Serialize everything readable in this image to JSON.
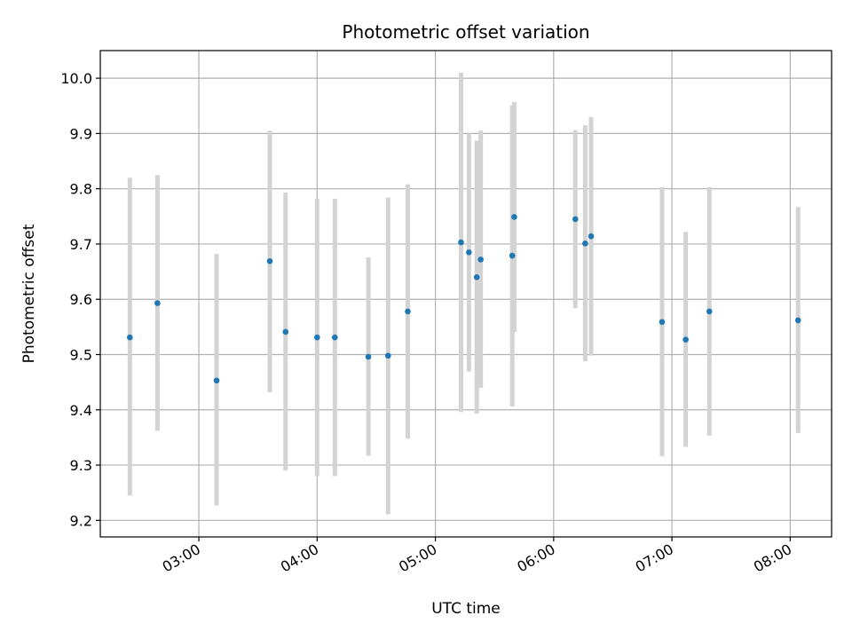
{
  "chart_data": {
    "type": "scatter",
    "title": "Photometric offset variation",
    "xlabel": "UTC time",
    "ylabel": "Photometric offset",
    "x_axis_kind": "time",
    "xlim": [
      "02:10",
      "08:21"
    ],
    "ylim": [
      9.17,
      10.05
    ],
    "x_ticks": [
      "03:00",
      "04:00",
      "05:00",
      "06:00",
      "07:00",
      "08:00"
    ],
    "y_ticks": [
      9.2,
      9.3,
      9.4,
      9.5,
      9.6,
      9.7,
      9.8,
      9.9,
      10.0
    ],
    "y_tick_labels": [
      "9.2",
      "9.3",
      "9.4",
      "9.5",
      "9.6",
      "9.7",
      "9.8",
      "9.9",
      "10.0"
    ],
    "grid": true,
    "colors": {
      "point": "#1f77b4",
      "errorbar": "#d3d3d3",
      "grid": "#b0b0b0"
    },
    "points": [
      {
        "time": "02:25",
        "y": 9.531,
        "ylow": 9.245,
        "yhigh": 9.82
      },
      {
        "time": "02:39",
        "y": 9.593,
        "ylow": 9.362,
        "yhigh": 9.825
      },
      {
        "time": "03:09",
        "y": 9.453,
        "ylow": 9.227,
        "yhigh": 9.682
      },
      {
        "time": "03:36",
        "y": 9.669,
        "ylow": 9.432,
        "yhigh": 9.905
      },
      {
        "time": "03:44",
        "y": 9.541,
        "ylow": 9.29,
        "yhigh": 9.793
      },
      {
        "time": "04:00",
        "y": 9.531,
        "ylow": 9.28,
        "yhigh": 9.782
      },
      {
        "time": "04:09",
        "y": 9.531,
        "ylow": 9.28,
        "yhigh": 9.782
      },
      {
        "time": "04:26",
        "y": 9.496,
        "ylow": 9.317,
        "yhigh": 9.676
      },
      {
        "time": "04:36",
        "y": 9.498,
        "ylow": 9.211,
        "yhigh": 9.784
      },
      {
        "time": "04:46",
        "y": 9.578,
        "ylow": 9.348,
        "yhigh": 9.808
      },
      {
        "time": "05:13",
        "y": 9.703,
        "ylow": 9.396,
        "yhigh": 10.01
      },
      {
        "time": "05:17",
        "y": 9.685,
        "ylow": 9.469,
        "yhigh": 9.9
      },
      {
        "time": "05:21",
        "y": 9.64,
        "ylow": 9.393,
        "yhigh": 9.887
      },
      {
        "time": "05:23",
        "y": 9.672,
        "ylow": 9.44,
        "yhigh": 9.905
      },
      {
        "time": "05:39",
        "y": 9.679,
        "ylow": 9.406,
        "yhigh": 9.951
      },
      {
        "time": "05:40",
        "y": 9.749,
        "ylow": 9.541,
        "yhigh": 9.957
      },
      {
        "time": "06:11",
        "y": 9.745,
        "ylow": 9.584,
        "yhigh": 9.906
      },
      {
        "time": "06:16",
        "y": 9.701,
        "ylow": 9.488,
        "yhigh": 9.915
      },
      {
        "time": "06:19",
        "y": 9.714,
        "ylow": 9.498,
        "yhigh": 9.93
      },
      {
        "time": "06:55",
        "y": 9.559,
        "ylow": 9.316,
        "yhigh": 9.803
      },
      {
        "time": "07:07",
        "y": 9.527,
        "ylow": 9.333,
        "yhigh": 9.722
      },
      {
        "time": "07:19",
        "y": 9.578,
        "ylow": 9.353,
        "yhigh": 9.803
      },
      {
        "time": "08:04",
        "y": 9.562,
        "ylow": 9.358,
        "yhigh": 9.767
      }
    ]
  }
}
